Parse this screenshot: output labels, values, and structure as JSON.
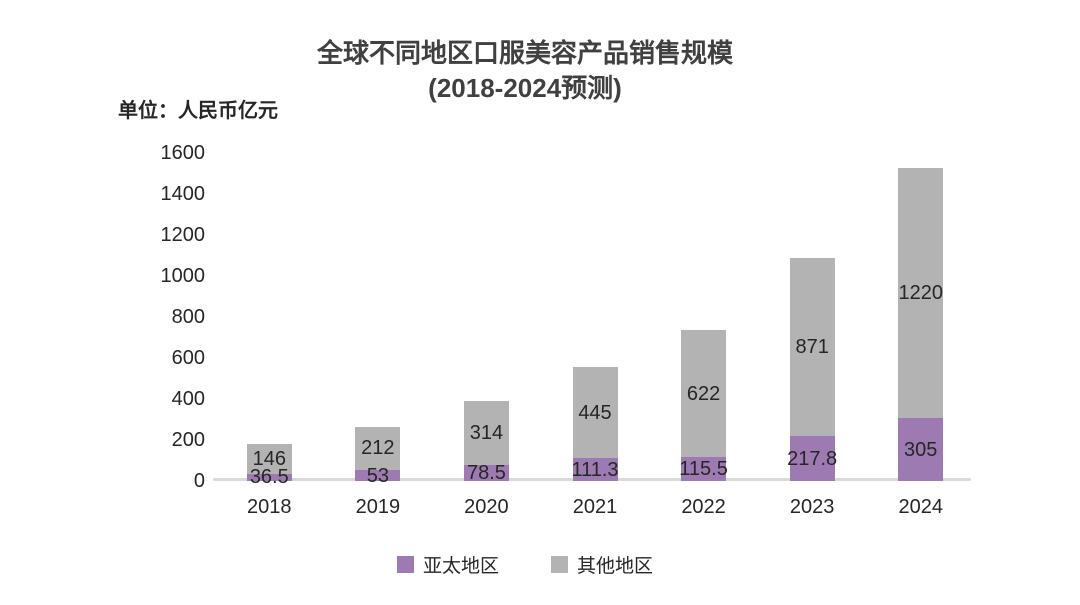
{
  "chart_data": {
    "type": "bar",
    "stacked": true,
    "title": "全球不同地区口服美容产品销售规模",
    "subtitle": "(2018-2024预测)",
    "unit_label": "单位：人民币亿元",
    "categories": [
      "2018",
      "2019",
      "2020",
      "2021",
      "2022",
      "2023",
      "2024"
    ],
    "series": [
      {
        "name": "亚太地区",
        "color": "#9d7bb2",
        "values": [
          36.5,
          53,
          78.5,
          111.3,
          115.5,
          217.8,
          305
        ]
      },
      {
        "name": "其他地区",
        "color": "#b3b3b3",
        "values": [
          146,
          212,
          314,
          445,
          622,
          871,
          1220
        ]
      }
    ],
    "ylim": [
      0,
      1600
    ],
    "yticks": [
      0,
      200,
      400,
      600,
      800,
      1000,
      1200,
      1400,
      1600
    ],
    "grid": false,
    "legend_position": "bottom",
    "axis_line_color": "#d9d9d9",
    "title_color": "#404040",
    "label_color": "#262626"
  }
}
